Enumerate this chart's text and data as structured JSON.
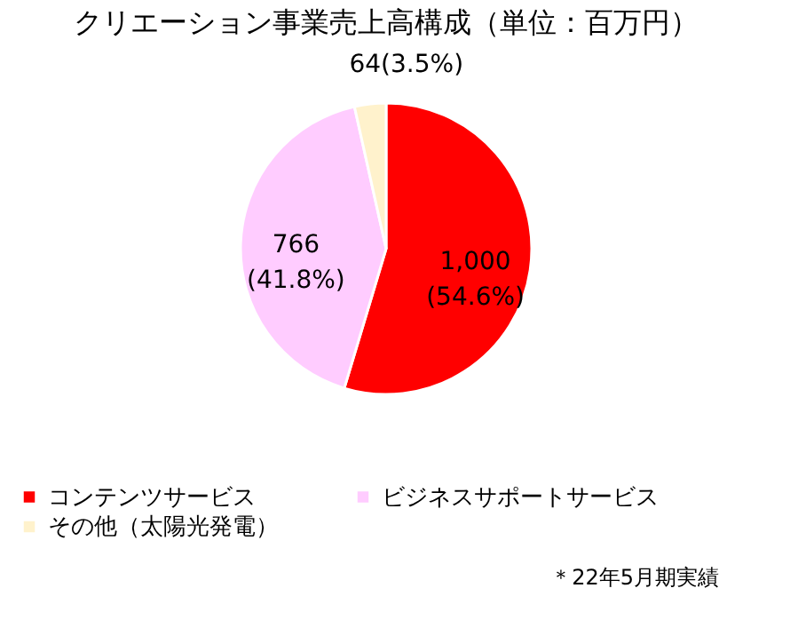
{
  "chart_data": {
    "type": "pie",
    "title": "クリエーション事業売上高構成（単位：百万円）",
    "categories": [
      "コンテンツサービス",
      "ビジネスサポートサービス",
      "その他（太陽光発電）"
    ],
    "values": [
      1000,
      766,
      64
    ],
    "colors": [
      "#ff0000",
      "#ffccff",
      "#fff2cc"
    ],
    "value_labels": [
      "1,000\n(54.6%)",
      "766\n(41.8%)",
      "64(3.5%)"
    ],
    "legend": "bottom",
    "annotations": [
      "＊22年5月期実績"
    ]
  }
}
